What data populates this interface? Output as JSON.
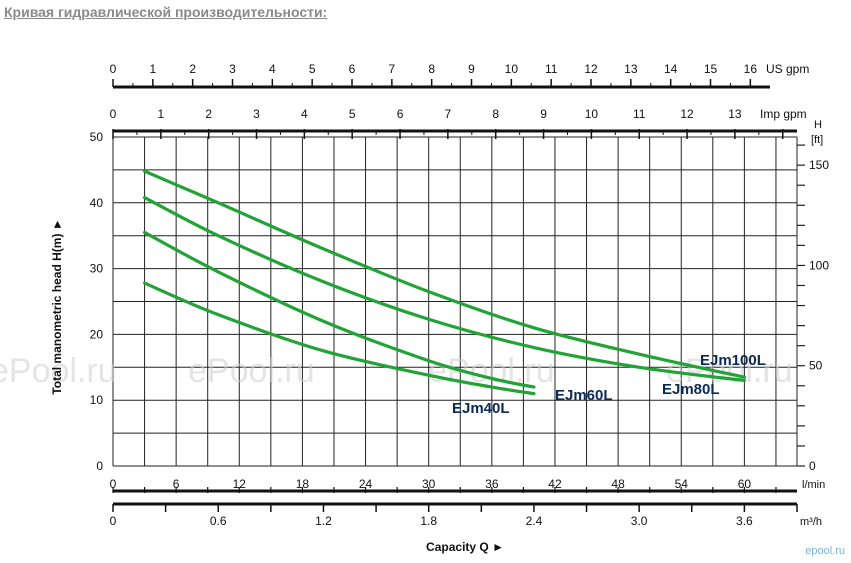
{
  "heading": "Кривая гидравлической производительности:",
  "watermark": "ePool.ru",
  "brand": "epool.ru",
  "chart_data": {
    "type": "line",
    "series_color": "#21a336",
    "x": {
      "unit": "l/min",
      "range": [
        0,
        65
      ],
      "ticks": [
        "0",
        "6",
        "12",
        "18",
        "24",
        "30",
        "36",
        "42",
        "48",
        "54",
        "60"
      ]
    },
    "x_m3h": {
      "unit": "m³/h",
      "ticks": [
        "0",
        "0.6",
        "1.2",
        "1.8",
        "2.4",
        "3.0",
        "3.6"
      ]
    },
    "x_usgpm": {
      "unit": "US gpm",
      "ticks": [
        "0",
        "1",
        "2",
        "3",
        "4",
        "5",
        "6",
        "7",
        "8",
        "9",
        "10",
        "11",
        "12",
        "13",
        "14",
        "15",
        "16"
      ]
    },
    "x_impgpm": {
      "unit": "Imp gpm",
      "ticks": [
        "0",
        "1",
        "2",
        "3",
        "4",
        "5",
        "6",
        "7",
        "8",
        "9",
        "10",
        "11",
        "12",
        "13"
      ]
    },
    "y": {
      "label": "Total manometric head H(m) ►",
      "range": [
        0,
        50
      ],
      "ticks": [
        "0",
        "10",
        "20",
        "30",
        "40",
        "50"
      ]
    },
    "y_ft": {
      "label_top": "H",
      "unit": "[ft]",
      "ticks": [
        "0",
        "50",
        "100",
        "150"
      ]
    },
    "xlabel": "Capacity Q ►",
    "series": [
      {
        "name": "EJm40L",
        "x": [
          3,
          10,
          20,
          30,
          36,
          40
        ],
        "y": [
          27.8,
          23,
          17.5,
          13.8,
          12,
          11
        ]
      },
      {
        "name": "EJm60L",
        "x": [
          3,
          10,
          20,
          30,
          36,
          40
        ],
        "y": [
          35.5,
          29.5,
          22,
          16,
          13.3,
          12
        ]
      },
      {
        "name": "EJm80L",
        "x": [
          3,
          10,
          20,
          30,
          40,
          50,
          60
        ],
        "y": [
          40.8,
          35,
          28,
          22.3,
          18,
          15,
          13
        ]
      },
      {
        "name": "EJm100L",
        "x": [
          3,
          10,
          20,
          30,
          40,
          50,
          60
        ],
        "y": [
          44.8,
          40,
          33,
          26.5,
          21,
          17,
          13.5
        ]
      }
    ]
  }
}
